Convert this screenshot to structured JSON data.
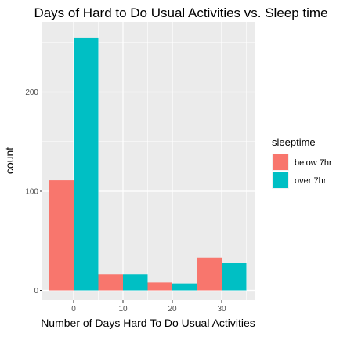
{
  "chart_data": {
    "type": "bar",
    "title": "Days of Hard to Do Usual Activities vs. Sleep time",
    "xlabel": "Number of Days Hard To Do Usual Activities",
    "ylabel": "count",
    "x_ticks": [
      0,
      10,
      20,
      30
    ],
    "y_ticks": [
      0,
      100,
      200
    ],
    "xlim": [
      -5,
      35
    ],
    "ylim": [
      0,
      255
    ],
    "grid": true,
    "legend_position": "right",
    "legend_title": "sleeptime",
    "bins": [
      {
        "x_start": -5,
        "x_end": 5
      },
      {
        "x_start": 5,
        "x_end": 15
      },
      {
        "x_start": 15,
        "x_end": 25
      },
      {
        "x_start": 25,
        "x_end": 35
      }
    ],
    "series": [
      {
        "name": "below 7hr",
        "color": "#F8766D",
        "values": [
          111,
          16,
          8,
          33
        ]
      },
      {
        "name": "over 7hr",
        "color": "#00BFC4",
        "values": [
          255,
          16,
          7,
          28
        ]
      }
    ],
    "panel_background": "#EBEBEB",
    "gridline_color": "#FFFFFF"
  }
}
